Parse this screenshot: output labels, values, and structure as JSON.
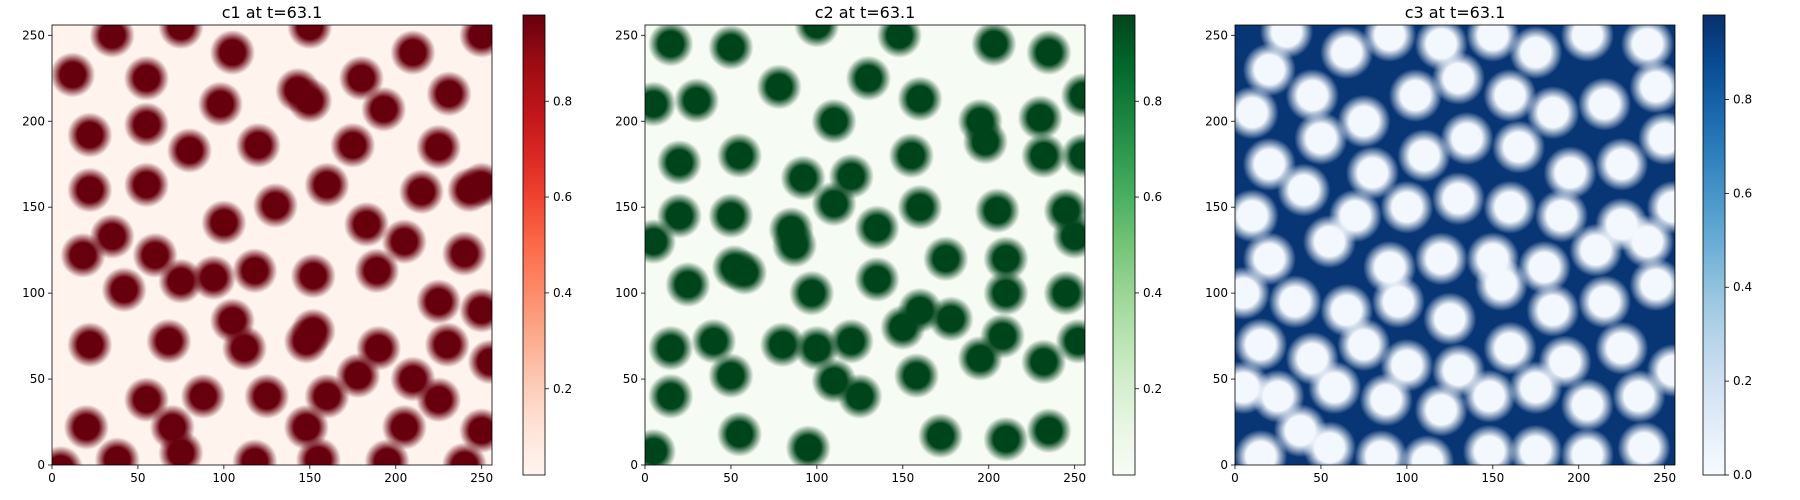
{
  "chart_data": [
    {
      "type": "heatmap",
      "title": "c1 at t=63.1",
      "colormap": "Reds",
      "xlim": [
        0,
        256
      ],
      "ylim": [
        0,
        256
      ],
      "xticks": [
        0,
        50,
        100,
        150,
        200,
        250
      ],
      "yticks": [
        0,
        50,
        100,
        150,
        200,
        250
      ],
      "colorbar": {
        "range": [
          0.02,
          0.98
        ],
        "ticks": [
          0.2,
          0.4,
          0.6,
          0.8
        ],
        "tick_labels": [
          "0.2",
          "0.4",
          "0.6",
          "0.8"
        ]
      },
      "background_value": 0.03,
      "spot_value": 0.98,
      "spot_radius": 8.5,
      "spots": [
        [
          5,
          -2
        ],
        [
          38,
          3
        ],
        [
          75,
          7
        ],
        [
          118,
          2
        ],
        [
          155,
          3
        ],
        [
          195,
          2
        ],
        [
          240,
          0
        ],
        [
          20,
          22
        ],
        [
          70,
          22
        ],
        [
          148,
          22
        ],
        [
          205,
          22
        ],
        [
          250,
          20
        ],
        [
          55,
          38
        ],
        [
          88,
          40
        ],
        [
          125,
          40
        ],
        [
          160,
          40
        ],
        [
          225,
          38
        ],
        [
          22,
          70
        ],
        [
          68,
          72
        ],
        [
          112,
          68
        ],
        [
          148,
          72
        ],
        [
          190,
          68
        ],
        [
          230,
          70
        ],
        [
          255,
          60
        ],
        [
          75,
          107
        ],
        [
          105,
          84
        ],
        [
          152,
          78
        ],
        [
          178,
          52
        ],
        [
          210,
          50
        ],
        [
          250,
          90
        ],
        [
          42,
          102
        ],
        [
          118,
          113
        ],
        [
          152,
          110
        ],
        [
          189,
          113
        ],
        [
          225,
          95
        ],
        [
          18,
          122
        ],
        [
          60,
          122
        ],
        [
          94,
          109
        ],
        [
          205,
          130
        ],
        [
          240,
          123
        ],
        [
          22,
          160
        ],
        [
          55,
          163
        ],
        [
          100,
          141
        ],
        [
          130,
          151
        ],
        [
          160,
          163
        ],
        [
          183,
          140
        ],
        [
          215,
          159
        ],
        [
          250,
          163
        ],
        [
          35,
          133
        ],
        [
          80,
          183
        ],
        [
          120,
          186
        ],
        [
          175,
          186
        ],
        [
          225,
          185
        ],
        [
          243,
          160
        ],
        [
          22,
          192
        ],
        [
          55,
          198
        ],
        [
          98,
          210
        ],
        [
          150,
          212
        ],
        [
          193,
          207
        ],
        [
          231,
          216
        ],
        [
          12,
          227
        ],
        [
          55,
          225
        ],
        [
          105,
          240
        ],
        [
          143,
          218
        ],
        [
          180,
          225
        ],
        [
          210,
          240
        ],
        [
          250,
          250
        ],
        [
          35,
          250
        ],
        [
          75,
          255
        ],
        [
          150,
          255
        ]
      ]
    },
    {
      "type": "heatmap",
      "title": "c2 at t=63.1",
      "colormap": "Greens",
      "xlim": [
        0,
        256
      ],
      "ylim": [
        0,
        256
      ],
      "xticks": [
        0,
        50,
        100,
        150,
        200,
        250
      ],
      "yticks": [
        0,
        50,
        100,
        150,
        200,
        250
      ],
      "colorbar": {
        "range": [
          0.02,
          0.98
        ],
        "ticks": [
          0.2,
          0.4,
          0.6,
          0.8
        ],
        "tick_labels": [
          "0.2",
          "0.4",
          "0.6",
          "0.8"
        ]
      },
      "background_value": 0.03,
      "spot_value": 0.98,
      "spot_radius": 8.5,
      "spots": [
        [
          5,
          8
        ],
        [
          55,
          18
        ],
        [
          95,
          10
        ],
        [
          125,
          40
        ],
        [
          172,
          17
        ],
        [
          210,
          15
        ],
        [
          235,
          20
        ],
        [
          15,
          40
        ],
        [
          50,
          52
        ],
        [
          100,
          68
        ],
        [
          110,
          49
        ],
        [
          158,
          52
        ],
        [
          195,
          62
        ],
        [
          232,
          60
        ],
        [
          15,
          68
        ],
        [
          40,
          72
        ],
        [
          80,
          70
        ],
        [
          120,
          72
        ],
        [
          150,
          80
        ],
        [
          208,
          75
        ],
        [
          252,
          72
        ],
        [
          25,
          105
        ],
        [
          58,
          112
        ],
        [
          97,
          100
        ],
        [
          135,
          108
        ],
        [
          160,
          90
        ],
        [
          178,
          85
        ],
        [
          210,
          100
        ],
        [
          245,
          100
        ],
        [
          5,
          130
        ],
        [
          52,
          115
        ],
        [
          87,
          128
        ],
        [
          135,
          138
        ],
        [
          175,
          120
        ],
        [
          210,
          120
        ],
        [
          250,
          133
        ],
        [
          20,
          145
        ],
        [
          50,
          145
        ],
        [
          85,
          137
        ],
        [
          110,
          152
        ],
        [
          160,
          150
        ],
        [
          205,
          148
        ],
        [
          245,
          148
        ],
        [
          20,
          176
        ],
        [
          55,
          180
        ],
        [
          92,
          167
        ],
        [
          120,
          168
        ],
        [
          155,
          180
        ],
        [
          198,
          188
        ],
        [
          232,
          180
        ],
        [
          5,
          210
        ],
        [
          30,
          212
        ],
        [
          78,
          220
        ],
        [
          110,
          200
        ],
        [
          130,
          225
        ],
        [
          160,
          213
        ],
        [
          195,
          200
        ],
        [
          230,
          202
        ],
        [
          15,
          245
        ],
        [
          50,
          243
        ],
        [
          100,
          256
        ],
        [
          148,
          250
        ],
        [
          203,
          245
        ],
        [
          235,
          240
        ],
        [
          255,
          215
        ],
        [
          255,
          180
        ]
      ]
    },
    {
      "type": "heatmap",
      "title": "c3 at t=63.1",
      "colormap": "Blues",
      "xlim": [
        0,
        256
      ],
      "ylim": [
        0,
        256
      ],
      "xticks": [
        0,
        50,
        100,
        150,
        200,
        250
      ],
      "yticks": [
        0,
        50,
        100,
        150,
        200,
        250
      ],
      "colorbar": {
        "range": [
          0.0,
          0.98
        ],
        "ticks": [
          0.0,
          0.2,
          0.4,
          0.6,
          0.8
        ],
        "tick_labels": [
          "0.0",
          "0.2",
          "0.4",
          "0.6",
          "0.8"
        ]
      },
      "background_value": 0.96,
      "spot_value": 0.02,
      "spot_radius": 10,
      "spots": [
        [
          15,
          5
        ],
        [
          38,
          20
        ],
        [
          55,
          10
        ],
        [
          85,
          5
        ],
        [
          112,
          2
        ],
        [
          148,
          8
        ],
        [
          175,
          8
        ],
        [
          205,
          6
        ],
        [
          238,
          10
        ],
        [
          5,
          45
        ],
        [
          25,
          40
        ],
        [
          58,
          45
        ],
        [
          88,
          38
        ],
        [
          120,
          32
        ],
        [
          148,
          40
        ],
        [
          175,
          45
        ],
        [
          205,
          35
        ],
        [
          235,
          40
        ],
        [
          255,
          55
        ],
        [
          15,
          70
        ],
        [
          45,
          62
        ],
        [
          75,
          70
        ],
        [
          100,
          58
        ],
        [
          130,
          55
        ],
        [
          160,
          68
        ],
        [
          192,
          60
        ],
        [
          225,
          68
        ],
        [
          5,
          100
        ],
        [
          35,
          95
        ],
        [
          65,
          90
        ],
        [
          95,
          95
        ],
        [
          125,
          85
        ],
        [
          155,
          105
        ],
        [
          185,
          90
        ],
        [
          215,
          95
        ],
        [
          245,
          105
        ],
        [
          20,
          120
        ],
        [
          55,
          130
        ],
        [
          90,
          115
        ],
        [
          120,
          120
        ],
        [
          150,
          120
        ],
        [
          180,
          115
        ],
        [
          210,
          125
        ],
        [
          240,
          130
        ],
        [
          10,
          145
        ],
        [
          40,
          160
        ],
        [
          70,
          145
        ],
        [
          100,
          150
        ],
        [
          130,
          155
        ],
        [
          160,
          150
        ],
        [
          190,
          145
        ],
        [
          225,
          140
        ],
        [
          255,
          150
        ],
        [
          20,
          175
        ],
        [
          50,
          190
        ],
        [
          80,
          170
        ],
        [
          110,
          180
        ],
        [
          135,
          190
        ],
        [
          165,
          185
        ],
        [
          195,
          170
        ],
        [
          225,
          175
        ],
        [
          250,
          190
        ],
        [
          10,
          205
        ],
        [
          45,
          215
        ],
        [
          75,
          200
        ],
        [
          105,
          215
        ],
        [
          130,
          225
        ],
        [
          160,
          215
        ],
        [
          185,
          205
        ],
        [
          215,
          210
        ],
        [
          245,
          220
        ],
        [
          20,
          230
        ],
        [
          65,
          240
        ],
        [
          90,
          250
        ],
        [
          120,
          245
        ],
        [
          150,
          250
        ],
        [
          175,
          240
        ],
        [
          205,
          250
        ],
        [
          240,
          245
        ],
        [
          30,
          252
        ]
      ]
    }
  ]
}
